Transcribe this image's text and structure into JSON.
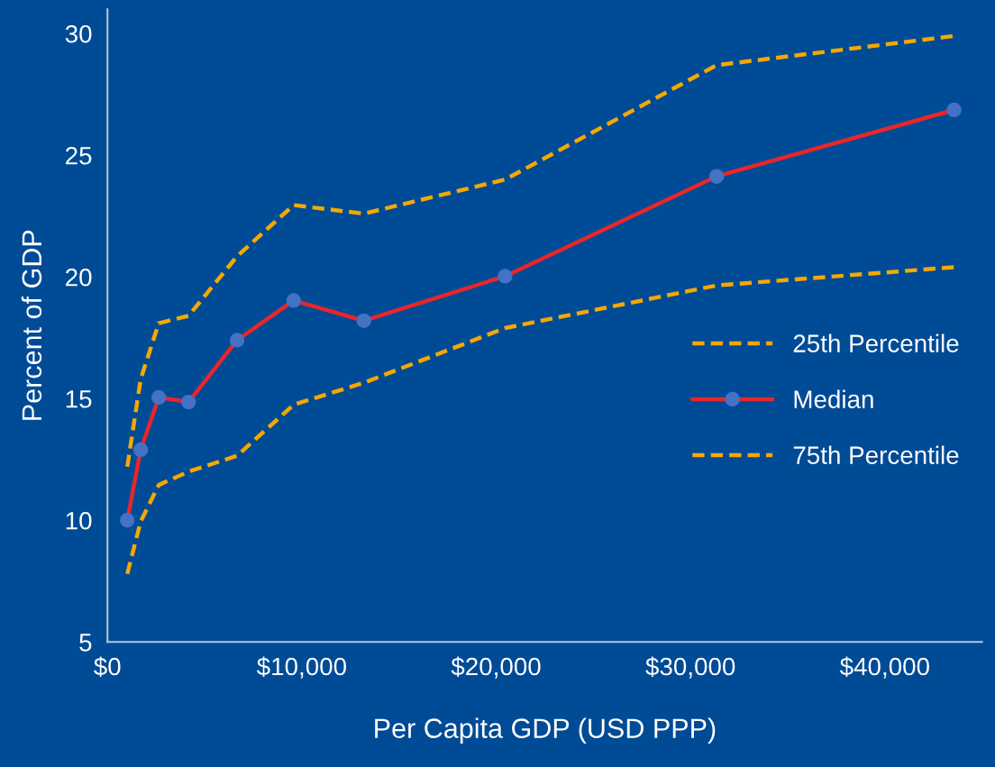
{
  "chart_data": {
    "type": "line",
    "xlabel": "Per Capita GDP (USD PPP)",
    "ylabel": "Percent of GDP",
    "x": [
      1020,
      1710,
      2640,
      4170,
      6670,
      9580,
      13190,
      20460,
      31340,
      43560
    ],
    "series": [
      {
        "name": "25th Percentile",
        "color": "#f5a800",
        "line_style": "dashed",
        "marker": "none",
        "values": [
          12.2,
          15.8,
          18.1,
          18.4,
          20.85,
          22.95,
          22.6,
          24.0,
          28.7,
          29.9
        ]
      },
      {
        "name": "Median",
        "color": "#e8262a",
        "line_style": "solid",
        "marker": "circle",
        "values": [
          10.0,
          12.9,
          15.05,
          14.86,
          17.4,
          19.03,
          18.2,
          20.03,
          24.13,
          26.86
        ]
      },
      {
        "name": "75th Percentile",
        "color": "#f5a800",
        "line_style": "dashed",
        "marker": "none",
        "values": [
          7.8,
          9.95,
          11.45,
          12.0,
          12.65,
          14.75,
          15.65,
          17.9,
          19.65,
          20.4
        ]
      }
    ],
    "xlim": [
      0,
      45000
    ],
    "xticks": [
      {
        "value": 0,
        "label": "$0"
      },
      {
        "value": 10000,
        "label": "$10,000"
      },
      {
        "value": 20000,
        "label": "$20,000"
      },
      {
        "value": 30000,
        "label": "$30,000"
      },
      {
        "value": 40000,
        "label": "$40,000"
      }
    ],
    "ylim": [
      5,
      31
    ],
    "yticks": [
      5,
      10,
      15,
      20,
      25,
      30
    ],
    "grid": false,
    "legend": "right"
  }
}
